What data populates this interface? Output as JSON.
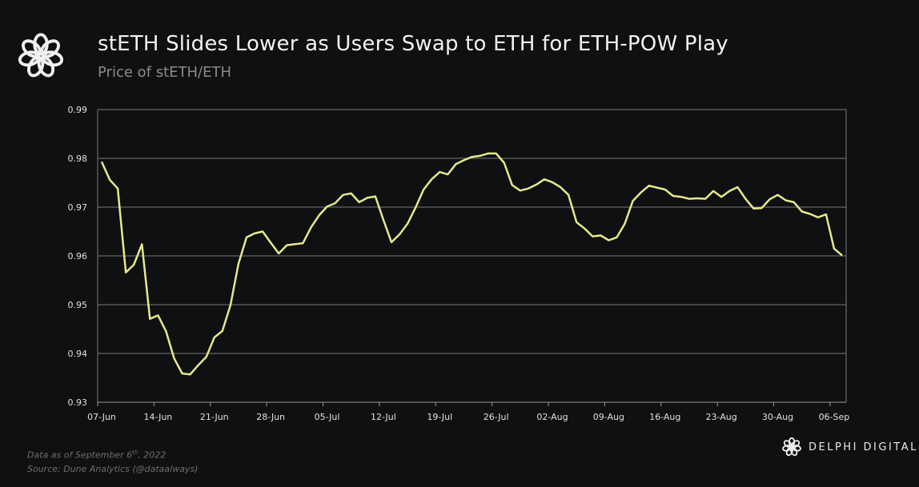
{
  "header": {
    "title": "stETH Slides Lower as Users Swap to ETH for ETH-POW Play",
    "subtitle": "Price of stETH/ETH",
    "logo_icon": "delphi-knot-logo"
  },
  "footer": {
    "note_prefix": "Data as of September 6",
    "note_sup": "th",
    "note_suffix": ", 2022",
    "source": "Source: Dune Analytics (@dataalways)",
    "brand": "DELPHI DIGITAL"
  },
  "colors": {
    "background": "#0f1012",
    "line": "#e6e88a",
    "grid": "#7a7a7a",
    "text": "#e0e0e0"
  },
  "chart_data": {
    "type": "line",
    "title": "stETH Slides Lower as Users Swap to ETH for ETH-POW Play",
    "subtitle": "Price of stETH/ETH",
    "xlabel": "",
    "ylabel": "",
    "ylim": [
      0.93,
      0.99
    ],
    "yticks": [
      "0.93",
      "0.94",
      "0.95",
      "0.96",
      "0.97",
      "0.98",
      "0.99"
    ],
    "xticks": [
      "07-Jun",
      "14-Jun",
      "21-Jun",
      "28-Jun",
      "05-Jul",
      "12-Jul",
      "19-Jul",
      "26-Jul",
      "02-Aug",
      "09-Aug",
      "16-Aug",
      "23-Aug",
      "30-Aug",
      "06-Sep"
    ],
    "grid": true,
    "legend": "none",
    "x_start": "2022-06-07",
    "x_end": "2022-09-07",
    "values": [
      0.9793,
      0.9756,
      0.9738,
      0.9566,
      0.9582,
      0.9624,
      0.9471,
      0.9478,
      0.9445,
      0.939,
      0.9359,
      0.9357,
      0.9376,
      0.9393,
      0.9433,
      0.9446,
      0.9499,
      0.9584,
      0.9638,
      0.9646,
      0.965,
      0.9627,
      0.9605,
      0.9622,
      0.9624,
      0.9626,
      0.9658,
      0.9683,
      0.9701,
      0.9708,
      0.9725,
      0.9728,
      0.971,
      0.9719,
      0.9722,
      0.9674,
      0.9628,
      0.9644,
      0.9666,
      0.9699,
      0.9736,
      0.9757,
      0.9772,
      0.9767,
      0.9788,
      0.9796,
      0.9803,
      0.9805,
      0.981,
      0.981,
      0.9791,
      0.9745,
      0.9734,
      0.9738,
      0.9746,
      0.9757,
      0.9751,
      0.9741,
      0.9725,
      0.9669,
      0.9656,
      0.964,
      0.9642,
      0.9632,
      0.9638,
      0.9666,
      0.9713,
      0.973,
      0.9744,
      0.974,
      0.9736,
      0.9723,
      0.9721,
      0.9717,
      0.9718,
      0.9717,
      0.9733,
      0.9721,
      0.9733,
      0.9741,
      0.9717,
      0.9697,
      0.9698,
      0.9716,
      0.9725,
      0.9714,
      0.971,
      0.9691,
      0.9686,
      0.9679,
      0.9685,
      0.9615,
      0.9601
    ]
  }
}
